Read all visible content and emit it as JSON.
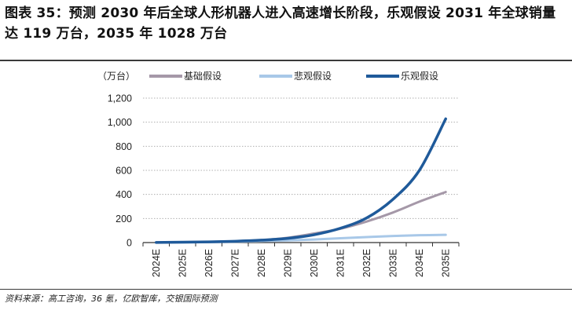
{
  "title": "图表 35：预测 2030 年后全球人形机器人进入高速增长阶段，乐观假设 2031 年全球销量达 119 万台，2035 年 1028 万台",
  "source": "资料来源：高工咨询，36 氪，亿欧智库，交银国际预测",
  "chart_data": {
    "type": "line",
    "unit_label": "（万台）",
    "categories": [
      "2024E",
      "2025E",
      "2026E",
      "2027E",
      "2028E",
      "2029E",
      "2030E",
      "2031E",
      "2032E",
      "2033E",
      "2034E",
      "2035E"
    ],
    "ylim": [
      0,
      1200
    ],
    "yticks": [
      0,
      200,
      400,
      600,
      800,
      1000,
      1200
    ],
    "ytick_labels": [
      "0",
      "200",
      "400",
      "600",
      "800",
      "1,000",
      "1,200"
    ],
    "grid": true,
    "legend_position": "top",
    "series": [
      {
        "name": "基础假设",
        "color": "#a598a8",
        "width": 3,
        "values": [
          1,
          3,
          6,
          11,
          20,
          40,
          75,
          115,
          175,
          250,
          340,
          420
        ]
      },
      {
        "name": "悲观假设",
        "color": "#a8c8e8",
        "width": 3,
        "values": [
          1,
          2,
          4,
          7,
          12,
          18,
          25,
          36,
          46,
          55,
          61,
          64
        ]
      },
      {
        "name": "乐观假设",
        "color": "#1f5a9a",
        "width": 3.5,
        "values": [
          1,
          3,
          6,
          11,
          20,
          35,
          65,
          119,
          205,
          360,
          600,
          1028
        ]
      }
    ]
  }
}
